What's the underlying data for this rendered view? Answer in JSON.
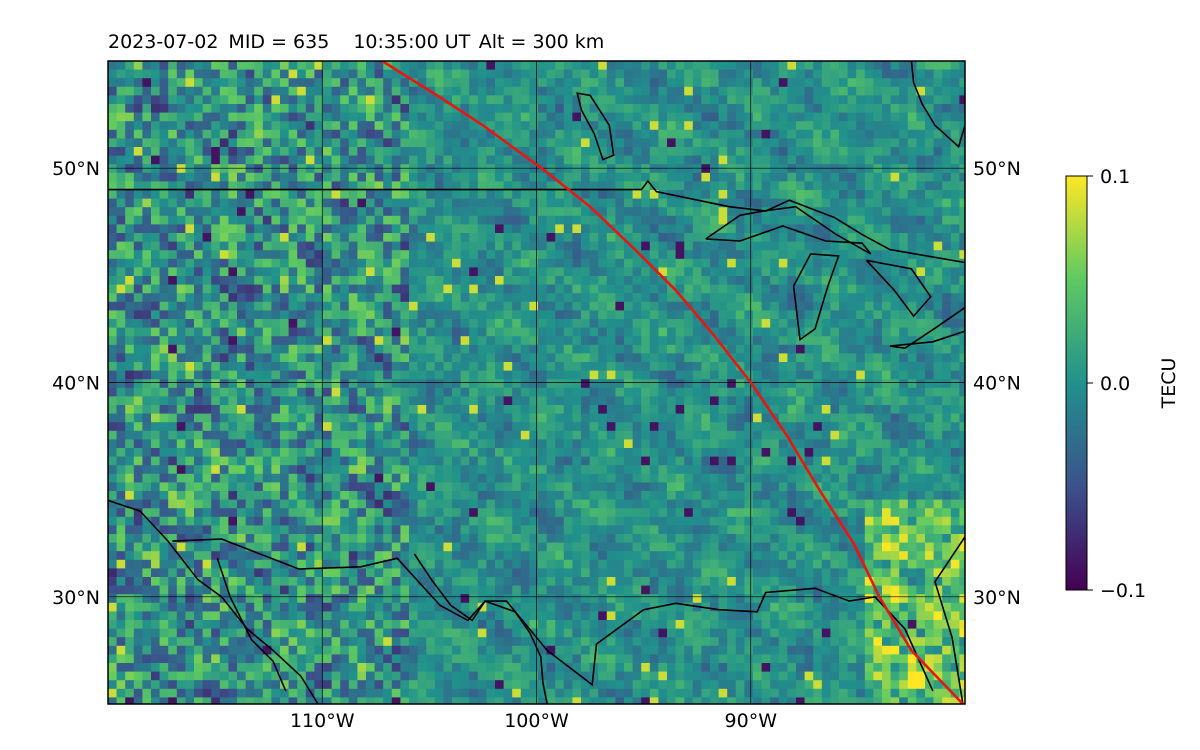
{
  "title": {
    "date": "2023-07-02",
    "mid_label": "MID = 635",
    "time_label": "10:35:00  UT",
    "alt_label": "Alt = 300 km"
  },
  "map": {
    "lon_range": [
      -120,
      -80
    ],
    "lat_range": [
      25,
      55
    ],
    "x_ticks": [
      {
        "value": -110,
        "label": "110°W"
      },
      {
        "value": -100,
        "label": "100°W"
      },
      {
        "value": -90,
        "label": "90°W"
      }
    ],
    "y_ticks": [
      {
        "value": 30,
        "label": "30°N"
      },
      {
        "value": 40,
        "label": "40°N"
      },
      {
        "value": 50,
        "label": "50°N"
      }
    ],
    "gridlines": true,
    "field": "detrended TEC, fine-grained speckled map with NW–SE banded traveling ionospheric disturbances",
    "terminator_color": "#e8160e",
    "terminator_line": [
      [
        -107.2,
        55
      ],
      [
        -104.5,
        53.3
      ],
      [
        -102.5,
        52
      ],
      [
        -101,
        50.9
      ],
      [
        -99.5,
        49.8
      ],
      [
        -97.5,
        48.2
      ],
      [
        -95.5,
        46.3
      ],
      [
        -93.5,
        44.3
      ],
      [
        -91.8,
        42.3
      ],
      [
        -90,
        40
      ],
      [
        -88.3,
        37.5
      ],
      [
        -86.8,
        35
      ],
      [
        -85.2,
        32.5
      ],
      [
        -84,
        30
      ],
      [
        -82.5,
        27.5
      ],
      [
        -80.1,
        25
      ]
    ],
    "coastlines": [
      [
        [
          -120,
          49
        ],
        [
          -95.1,
          49
        ],
        [
          -94.8,
          49.4
        ],
        [
          -94.4,
          48.9
        ],
        [
          -91,
          48.2
        ],
        [
          -89.3,
          48.0
        ],
        [
          -88.2,
          48.5
        ],
        [
          -86.1,
          47.7
        ],
        [
          -84.8,
          46.9
        ],
        [
          -83.5,
          46.2
        ],
        [
          -80,
          45.6
        ]
      ],
      [
        [
          -120,
          34.5
        ],
        [
          -118.5,
          34.0
        ],
        [
          -117.2,
          32.6
        ],
        [
          -115.8,
          30.8
        ],
        [
          -114.7,
          30.0
        ],
        [
          -113.5,
          28.5
        ],
        [
          -112.3,
          27.5
        ],
        [
          -111,
          26.3
        ],
        [
          -110.2,
          25
        ]
      ],
      [
        [
          -114.9,
          31.8
        ],
        [
          -114.3,
          30.0
        ],
        [
          -113.3,
          28.0
        ],
        [
          -112.3,
          27.0
        ],
        [
          -111.7,
          25.6
        ]
      ],
      [
        [
          -117,
          32.6
        ],
        [
          -114.7,
          32.7
        ],
        [
          -111.1,
          31.3
        ],
        [
          -108.2,
          31.4
        ],
        [
          -106.5,
          31.8
        ],
        [
          -104.5,
          29.6
        ],
        [
          -103.2,
          28.9
        ],
        [
          -102.4,
          29.8
        ],
        [
          -101.4,
          29.8
        ],
        [
          -99.5,
          27.5
        ],
        [
          -97.4,
          25.9
        ],
        [
          -97.2,
          27.8
        ],
        [
          -95,
          29.4
        ],
        [
          -93.5,
          29.7
        ],
        [
          -91.5,
          29.4
        ],
        [
          -89.7,
          29.3
        ],
        [
          -89.3,
          30.2
        ],
        [
          -87,
          30.4
        ],
        [
          -85.4,
          29.8
        ],
        [
          -84.2,
          30.0
        ],
        [
          -82.8,
          28.5
        ],
        [
          -81.5,
          25.6
        ]
      ],
      [
        [
          -80.1,
          25
        ],
        [
          -80.6,
          28.1
        ],
        [
          -81.4,
          30.7
        ],
        [
          -80,
          32.8
        ]
      ],
      [
        [
          -105.7,
          32.0
        ],
        [
          -104.9,
          30.8
        ],
        [
          -104.0,
          29.6
        ],
        [
          -103.0,
          28.9
        ],
        [
          -102.4,
          29.8
        ],
        [
          -101.0,
          29.3
        ],
        [
          -100.3,
          28.3
        ],
        [
          -99.8,
          27.2
        ],
        [
          -99.7,
          26.0
        ],
        [
          -99.5,
          25
        ]
      ]
    ],
    "lakes": [
      [
        [
          -92.1,
          46.7
        ],
        [
          -90.5,
          46.6
        ],
        [
          -88.5,
          47.3
        ],
        [
          -86.5,
          46.6
        ],
        [
          -84.8,
          46.5
        ],
        [
          -84.4,
          46.0
        ],
        [
          -86.0,
          46.9
        ],
        [
          -87.9,
          48.2
        ],
        [
          -89.4,
          48.0
        ],
        [
          -90.5,
          47.8
        ],
        [
          -92.1,
          46.7
        ]
      ],
      [
        [
          -88.0,
          44.5
        ],
        [
          -87.2,
          46.0
        ],
        [
          -85.9,
          45.9
        ],
        [
          -86.4,
          44.5
        ],
        [
          -87.0,
          42.5
        ],
        [
          -87.7,
          42.0
        ],
        [
          -88.0,
          44.5
        ]
      ],
      [
        [
          -84.6,
          45.7
        ],
        [
          -82.5,
          45.3
        ],
        [
          -81.6,
          44.0
        ],
        [
          -82.4,
          43.1
        ],
        [
          -83.3,
          44.3
        ],
        [
          -84.6,
          45.7
        ]
      ],
      [
        [
          -83.5,
          41.7
        ],
        [
          -81.5,
          41.9
        ],
        [
          -80,
          42.4
        ],
        [
          -80,
          43.5
        ],
        [
          -81.3,
          42.6
        ],
        [
          -82.8,
          41.6
        ],
        [
          -83.5,
          41.7
        ]
      ],
      [
        [
          -97.9,
          52.7
        ],
        [
          -97.3,
          51.6
        ],
        [
          -96.9,
          50.4
        ],
        [
          -96.4,
          50.6
        ],
        [
          -96.6,
          52.0
        ],
        [
          -97.5,
          53.4
        ],
        [
          -98.1,
          53.5
        ],
        [
          -97.9,
          52.7
        ]
      ],
      [
        [
          -80,
          52
        ],
        [
          -80.3,
          51.0
        ],
        [
          -81.4,
          52.0
        ],
        [
          -82.0,
          53.0
        ],
        [
          -82.4,
          54.0
        ],
        [
          -82.5,
          55
        ]
      ]
    ]
  },
  "colorbar": {
    "label": "TECU",
    "ticks": [
      {
        "value": 0.1,
        "label": "0.1"
      },
      {
        "value": 0.0,
        "label": "0.0"
      },
      {
        "value": -0.1,
        "label": "−0.1"
      }
    ],
    "colormap": "viridis",
    "stops": [
      "#440154",
      "#3b528b",
      "#21918c",
      "#5ec962",
      "#fde725"
    ]
  }
}
